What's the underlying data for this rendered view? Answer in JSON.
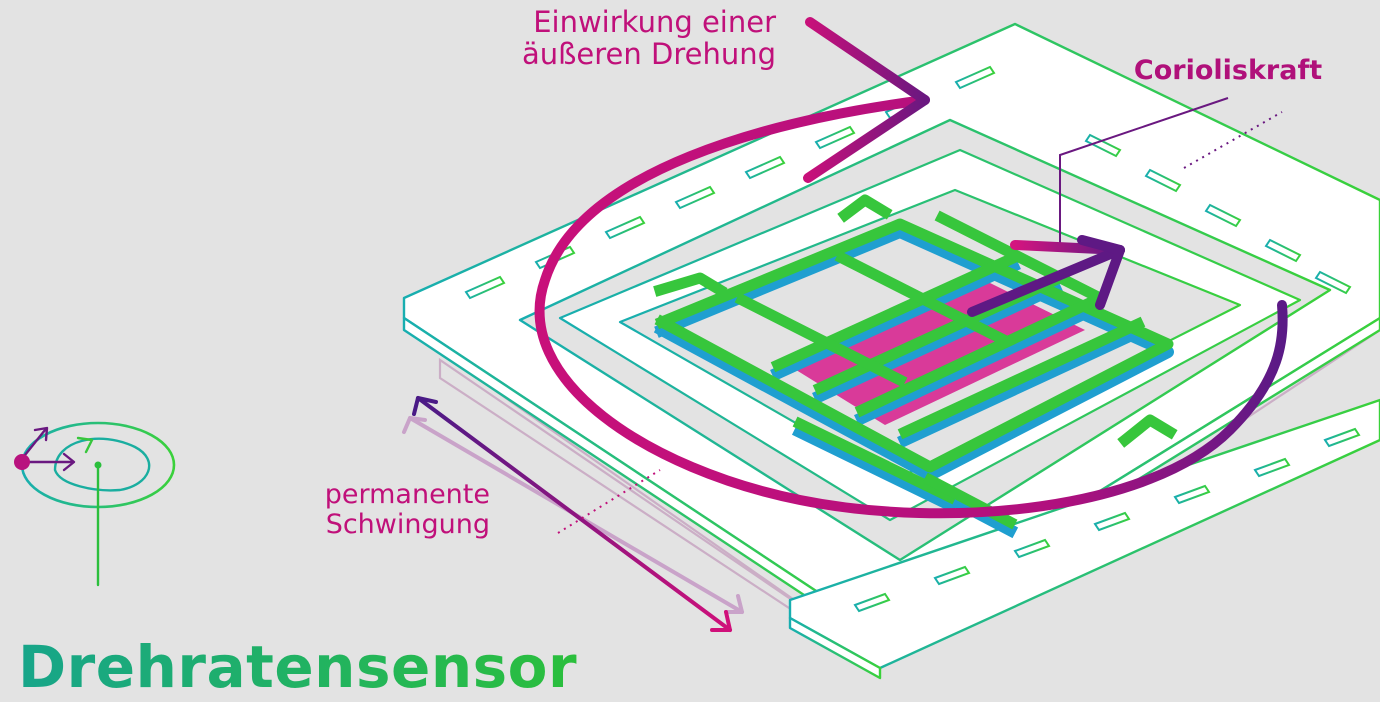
{
  "title": "Drehratensensor",
  "labels": {
    "rotation": [
      "Einwirkung einer",
      "äußeren Drehung"
    ],
    "coriolis": "Corioliskraft",
    "vibration": [
      "permanente",
      "Schwingung"
    ]
  },
  "colors": {
    "background": "#e3e3e3",
    "magenta": "#c8107a",
    "purple": "#6a1880",
    "green": "#37c63c",
    "teal": "#1aaea0",
    "blue": "#1f9fd0",
    "pink_plate": "#d7228e",
    "ghost": "#c9a9c3"
  }
}
